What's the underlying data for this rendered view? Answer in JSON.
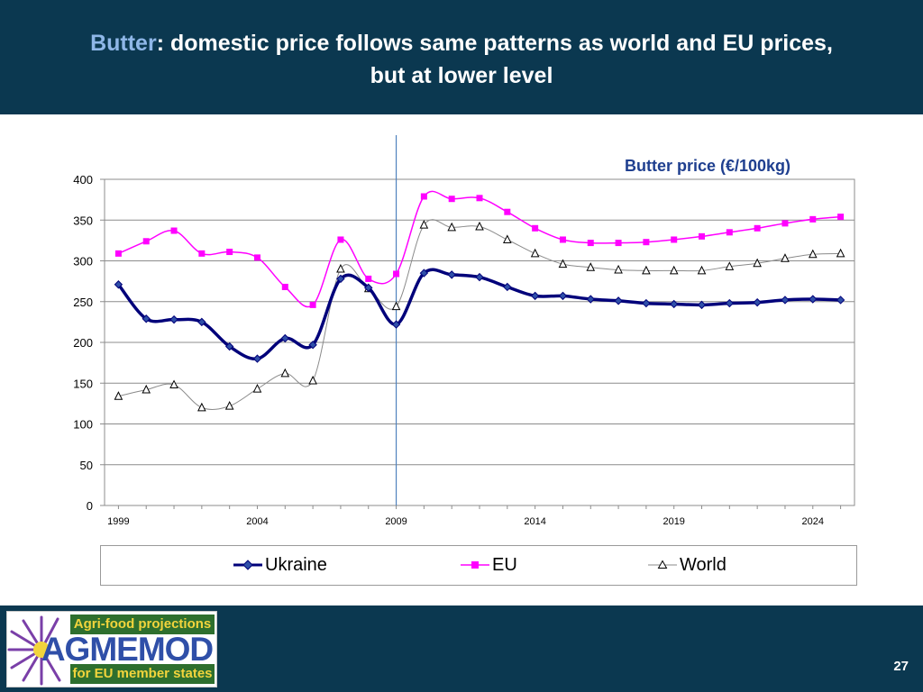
{
  "slide": {
    "title_accent": "Butter",
    "title_rest": ": domestic price follows same patterns as world and EU prices,",
    "title_line2": "but at lower level",
    "page_number": "27"
  },
  "logo": {
    "top_text": "Agri-food projections",
    "main_text": "AGMEMOD",
    "bottom_text": "for EU member states"
  },
  "colors": {
    "header_bg": "#0b3850",
    "title_accent": "#8fb7e8",
    "chart_title": "#1f3f8f",
    "ukraine": "#00007a",
    "eu": "#ff00ff",
    "world": "#000000",
    "divider_line": "#4f81bd"
  },
  "chart_data": {
    "type": "line",
    "title": "Butter price (€/100kg)",
    "xlabel": "",
    "ylabel": "",
    "x": [
      1999,
      2000,
      2001,
      2002,
      2003,
      2004,
      2005,
      2006,
      2007,
      2008,
      2009,
      2010,
      2011,
      2012,
      2013,
      2014,
      2015,
      2016,
      2017,
      2018,
      2019,
      2020,
      2021,
      2022,
      2023,
      2024,
      2025
    ],
    "xlim": [
      1998.5,
      2025.5
    ],
    "ylim": [
      0,
      400
    ],
    "yticks": [
      0,
      50,
      100,
      150,
      200,
      250,
      300,
      350,
      400
    ],
    "xticks": [
      1999,
      2004,
      2009,
      2014,
      2019,
      2024
    ],
    "divider_year": 2009,
    "grid": true,
    "legend_position": "bottom",
    "series": [
      {
        "name": "Ukraine",
        "marker": "diamond",
        "values": [
          271,
          229,
          228,
          225,
          195,
          180,
          205,
          197,
          278,
          267,
          222,
          285,
          283,
          280,
          268,
          257,
          257,
          253,
          251,
          248,
          247,
          246,
          248,
          249,
          252,
          253,
          252
        ]
      },
      {
        "name": "EU",
        "marker": "square",
        "values": [
          309,
          324,
          337,
          309,
          311,
          304,
          268,
          246,
          326,
          278,
          284,
          379,
          376,
          377,
          360,
          340,
          326,
          322,
          322,
          323,
          326,
          330,
          335,
          340,
          346,
          351,
          354
        ]
      },
      {
        "name": "World",
        "marker": "triangle",
        "values": [
          134,
          142,
          148,
          120,
          122,
          143,
          162,
          153,
          290,
          266,
          244,
          344,
          341,
          342,
          326,
          309,
          296,
          292,
          289,
          288,
          288,
          288,
          293,
          297,
          303,
          308,
          309
        ]
      }
    ]
  }
}
